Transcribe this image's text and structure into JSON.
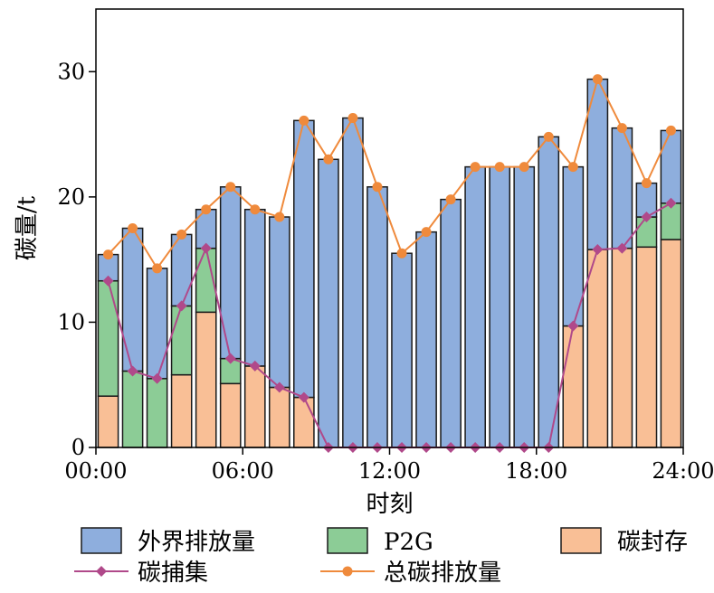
{
  "chart_data": {
    "type": "bar",
    "stacked": true,
    "xlabel": "时刻",
    "ylabel": "碳量/t",
    "ylim": [
      0,
      35
    ],
    "yticks": [
      0,
      10,
      20,
      30
    ],
    "x_tick_labels": [
      "00:00",
      "06:00",
      "12:00",
      "18:00",
      "24:00"
    ],
    "x": [
      1,
      2,
      3,
      4,
      5,
      6,
      7,
      8,
      9,
      10,
      11,
      12,
      13,
      14,
      15,
      16,
      17,
      18,
      19,
      20,
      21,
      22,
      23,
      24
    ],
    "bar_series": [
      {
        "name": "碳封存",
        "color": "#f9bf96",
        "values": [
          4.1,
          0,
          0,
          5.8,
          10.8,
          5.1,
          6.5,
          4.8,
          4.0,
          0,
          0,
          0,
          0,
          0,
          0,
          0,
          0,
          0,
          0,
          9.7,
          15.8,
          15.9,
          16.0,
          16.6
        ]
      },
      {
        "name": "P2G",
        "color": "#8ccc96",
        "values": [
          9.2,
          6.1,
          5.5,
          5.5,
          5.1,
          2.0,
          0,
          0,
          0,
          0,
          0,
          0,
          0,
          0,
          0,
          0,
          0,
          0,
          0,
          0,
          0,
          0,
          2.4,
          2.9
        ]
      },
      {
        "name": "外界排放量",
        "color": "#8eaedd",
        "values": [
          2.1,
          11.4,
          8.8,
          5.7,
          3.1,
          13.7,
          12.5,
          13.6,
          22.1,
          23.0,
          26.3,
          20.8,
          15.5,
          17.2,
          19.8,
          22.4,
          22.4,
          22.4,
          24.8,
          12.7,
          13.6,
          9.6,
          2.7,
          5.8
        ]
      }
    ],
    "line_series": [
      {
        "name": "碳捕集",
        "color": "#b0498a",
        "marker": "diamond",
        "values": [
          13.3,
          6.1,
          5.5,
          11.3,
          15.9,
          7.1,
          6.5,
          4.8,
          4.0,
          0,
          0,
          0,
          0,
          0,
          0,
          0,
          0,
          0,
          0,
          9.7,
          15.8,
          15.9,
          18.4,
          19.5
        ]
      },
      {
        "name": "总碳排放量",
        "color": "#ef8a3c",
        "marker": "circle",
        "values": [
          15.4,
          17.5,
          14.3,
          17.0,
          19.0,
          20.8,
          19.0,
          18.4,
          26.1,
          23.0,
          26.3,
          20.8,
          15.5,
          17.2,
          19.8,
          22.4,
          22.4,
          22.4,
          24.8,
          22.4,
          29.4,
          25.5,
          21.1,
          25.3
        ]
      }
    ],
    "legend": {
      "placement": "bottom",
      "entries": [
        {
          "label": "外界排放量",
          "kind": "bar",
          "color": "#8eaedd"
        },
        {
          "label": "P2G",
          "kind": "bar",
          "color": "#8ccc96"
        },
        {
          "label": "碳封存",
          "kind": "bar",
          "color": "#f9bf96"
        },
        {
          "label": "碳捕集",
          "kind": "line",
          "marker": "diamond",
          "color": "#b0498a"
        },
        {
          "label": "总碳排放量",
          "kind": "line",
          "marker": "circle",
          "color": "#ef8a3c"
        }
      ]
    }
  }
}
